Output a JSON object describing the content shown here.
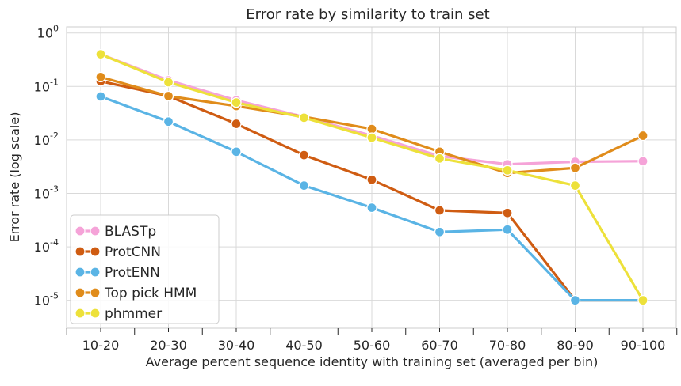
{
  "chart_data": {
    "type": "line",
    "title": "Error rate by similarity to train set",
    "xlabel": "Average percent sequence identity with training set (averaged per bin)",
    "ylabel": "Error rate (log scale)",
    "y_scale": "log",
    "ylim": [
      3e-06,
      1.3
    ],
    "categories": [
      "10-20",
      "20-30",
      "30-40",
      "40-50",
      "50-60",
      "60-70",
      "70-80",
      "80-90",
      "90-100"
    ],
    "y_ticks": [
      {
        "value": 1,
        "base": "10",
        "exp": "0"
      },
      {
        "value": 0.1,
        "base": "10",
        "exp": "-1"
      },
      {
        "value": 0.01,
        "base": "10",
        "exp": "-2"
      },
      {
        "value": 0.001,
        "base": "10",
        "exp": "-3"
      },
      {
        "value": 0.0001,
        "base": "10",
        "exp": "-4"
      },
      {
        "value": 1e-05,
        "base": "10",
        "exp": "-5"
      }
    ],
    "grid": true,
    "legend_position": "bottom-left",
    "series": [
      {
        "name": "BLASTp",
        "color": "#f5a3d8",
        "values": [
          0.4,
          0.13,
          0.055,
          0.027,
          0.012,
          0.005,
          0.0035,
          0.0039,
          0.004
        ]
      },
      {
        "name": "ProtCNN",
        "color": "#cf5c12",
        "values": [
          0.125,
          0.066,
          0.02,
          0.0052,
          0.0018,
          0.00048,
          0.00043,
          1e-05,
          1e-05
        ]
      },
      {
        "name": "ProtENN",
        "color": "#5ab4e5",
        "values": [
          0.065,
          0.022,
          0.006,
          0.0014,
          0.00054,
          0.00019,
          0.00021,
          1e-05,
          1e-05
        ]
      },
      {
        "name": "Top pick HMM",
        "color": "#e08c1b",
        "values": [
          0.15,
          0.066,
          0.043,
          0.027,
          0.016,
          0.006,
          0.0024,
          0.003,
          0.012
        ]
      },
      {
        "name": "phmmer",
        "color": "#ede13a",
        "values": [
          0.4,
          0.12,
          0.05,
          0.026,
          0.011,
          0.0045,
          0.0027,
          0.0014,
          1e-05
        ]
      }
    ]
  }
}
